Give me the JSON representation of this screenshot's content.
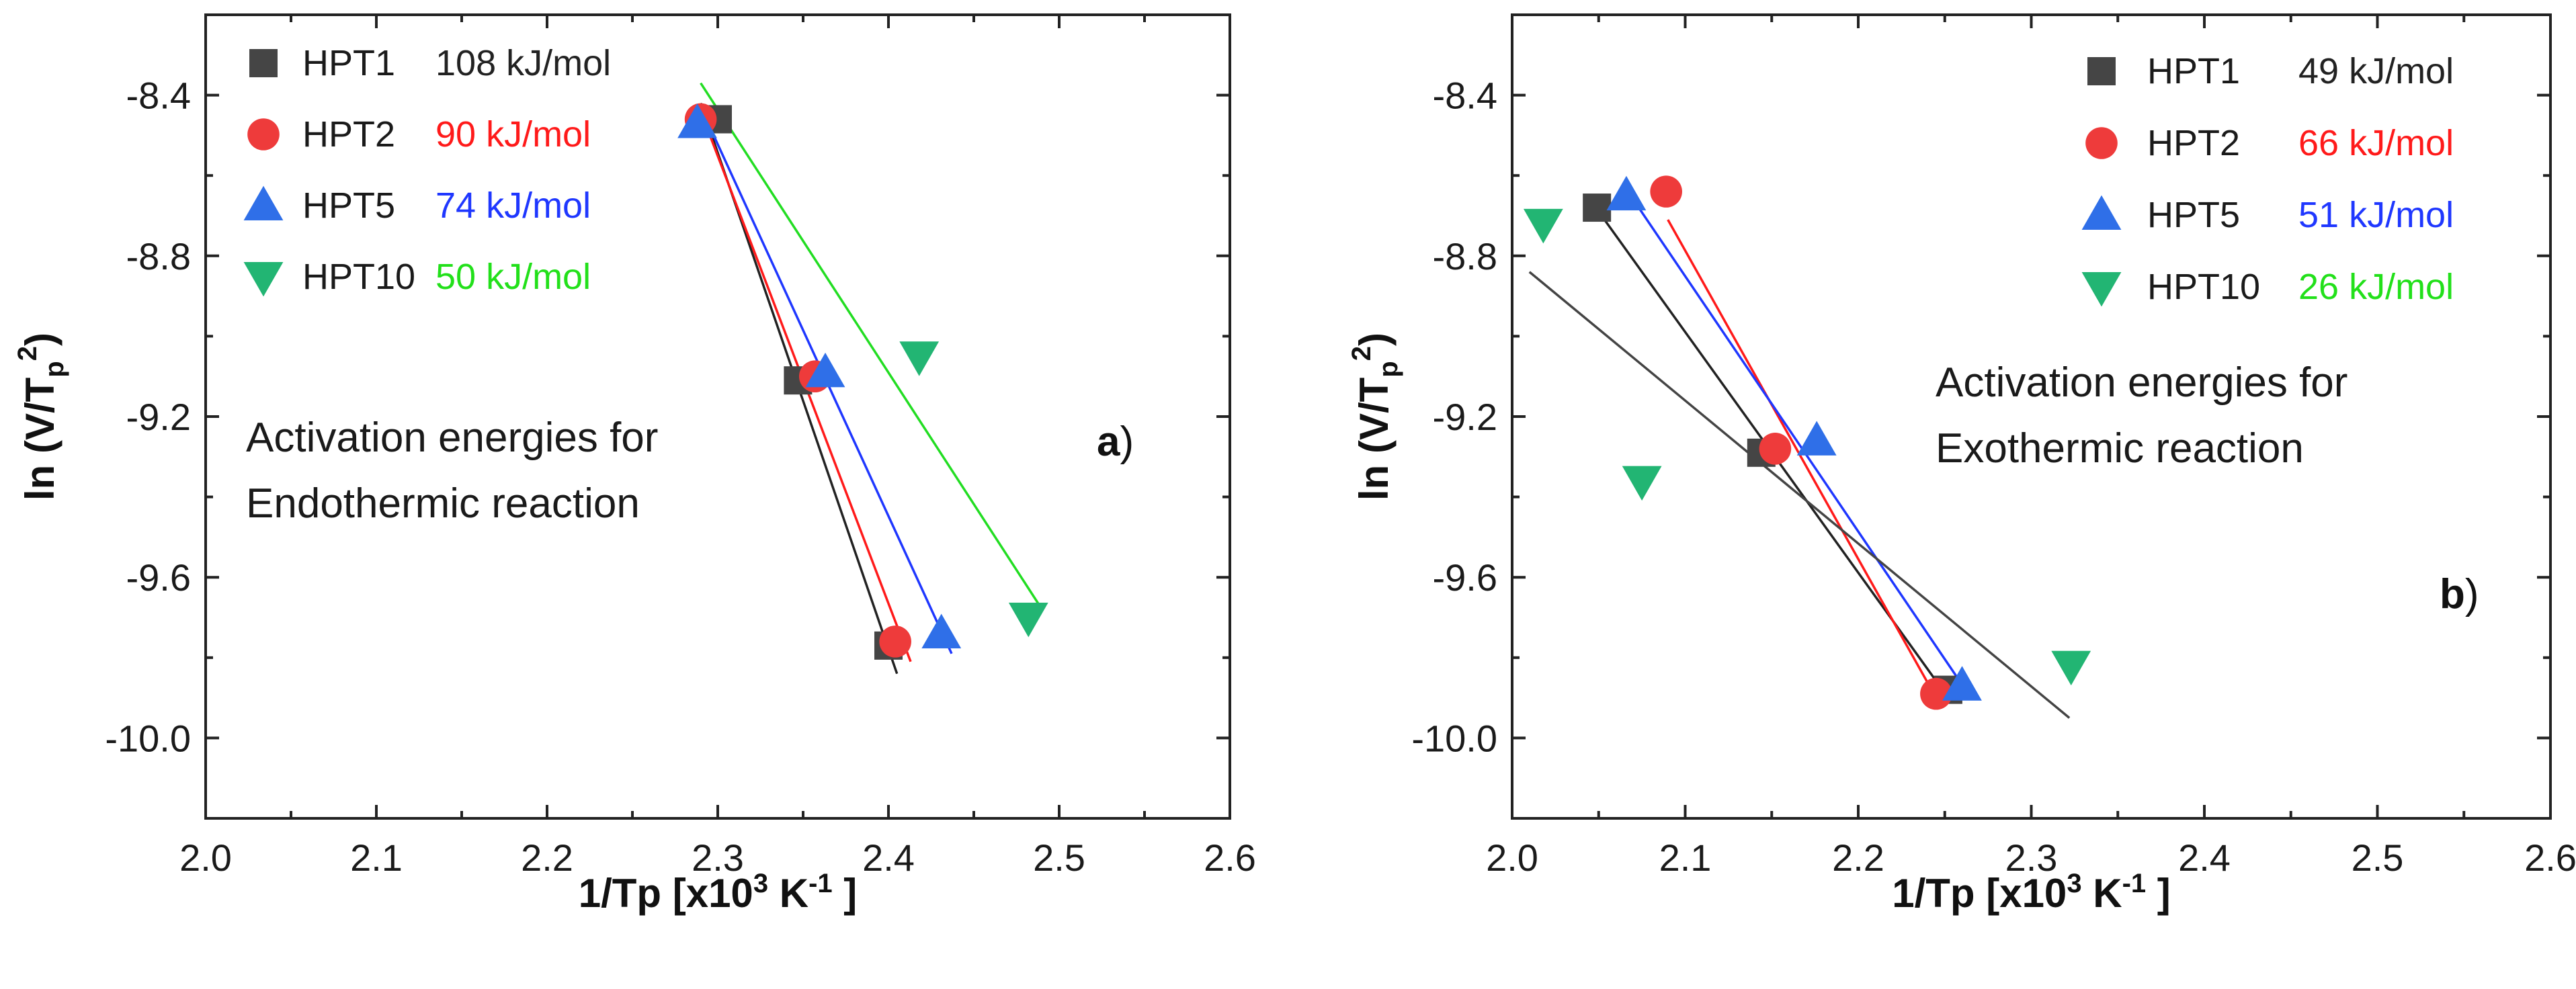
{
  "chart_data": [
    {
      "type": "scatter",
      "panel": "a",
      "panel_label": "a",
      "panel_label_suffix": ")",
      "annotation": [
        "Activation energies for",
        "Endothermic reaction"
      ],
      "xlabel": "1/Tp [x10³ K⁻¹ ]",
      "xlabel_parts": {
        "main": "1/Tp [x10",
        "sup1": "3",
        "mid": " K",
        "sup2": "-1",
        "end": " ]"
      },
      "ylabel_parts": {
        "main": "ln (V/T",
        "sub": "p",
        "sup": "2",
        "end": ")"
      },
      "xlim": [
        2.0,
        2.6
      ],
      "ylim": [
        -10.2,
        -8.2
      ],
      "xticks": [
        2.0,
        2.1,
        2.2,
        2.3,
        2.4,
        2.5,
        2.6
      ],
      "xtick_labels": [
        "2.0",
        "2.1",
        "2.2",
        "2.3",
        "2.4",
        "2.5",
        "2.6"
      ],
      "yticks": [
        -8.4,
        -8.8,
        -9.2,
        -9.6,
        -10.0
      ],
      "ytick_labels": [
        "-8.4",
        "-8.8",
        "-9.2",
        "-9.6",
        "-10.0"
      ],
      "legend_position": "top-left",
      "series": [
        {
          "name": "HPT1",
          "energy": "108 kJ/mol",
          "marker": "square",
          "color": "#454545",
          "energy_color": "#222222",
          "x": [
            2.3,
            2.347,
            2.4
          ],
          "y": [
            -8.46,
            -9.11,
            -9.77
          ],
          "fit": {
            "x": [
              2.29,
              2.405
            ],
            "y": [
              -8.42,
              -9.84
            ]
          }
        },
        {
          "name": "HPT2",
          "energy": "90 kJ/mol",
          "marker": "circle",
          "color": "#ee3b3b",
          "energy_color": "#ff1a1a",
          "x": [
            2.29,
            2.357,
            2.404
          ],
          "y": [
            -8.46,
            -9.1,
            -9.76
          ],
          "fit": {
            "x": [
              2.29,
              2.413
            ],
            "y": [
              -8.44,
              -9.81
            ]
          }
        },
        {
          "name": "HPT5",
          "energy": "74 kJ/mol",
          "marker": "triangle-up",
          "color": "#2f6fe8",
          "energy_color": "#1f37ff",
          "x": [
            2.288,
            2.363,
            2.431
          ],
          "y": [
            -8.47,
            -9.09,
            -9.74
          ],
          "fit": {
            "x": [
              2.29,
              2.437
            ],
            "y": [
              -8.43,
              -9.79
            ]
          }
        },
        {
          "name": "HPT10",
          "energy": "50 kJ/mol",
          "marker": "triangle-down",
          "color": "#22b573",
          "energy_color": "#22e01a",
          "x": [
            2.418,
            2.482
          ],
          "y": [
            -9.05,
            -9.7
          ],
          "fit": {
            "x": [
              2.29,
              2.49
            ],
            "y": [
              -8.37,
              -9.68
            ]
          }
        }
      ]
    },
    {
      "type": "scatter",
      "panel": "b",
      "panel_label": "b",
      "panel_label_suffix": ")",
      "annotation": [
        "Activation energies for",
        "Exothermic reaction"
      ],
      "xlabel": "1/Tp [x10³ K⁻¹ ]",
      "xlabel_parts": {
        "main": "1/Tp [x10",
        "sup1": "3",
        "mid": " K",
        "sup2": "-1",
        "end": " ]"
      },
      "ylabel_parts": {
        "main": "ln (V/T",
        "sub": "p",
        "sup": "2",
        "end": ")"
      },
      "xlim": [
        2.0,
        2.6
      ],
      "ylim": [
        -10.2,
        -8.2
      ],
      "xticks": [
        2.0,
        2.1,
        2.2,
        2.3,
        2.4,
        2.5,
        2.6
      ],
      "xtick_labels": [
        "2.0",
        "2.1",
        "2.2",
        "2.3",
        "2.4",
        "2.5",
        "2.6"
      ],
      "yticks": [
        -8.4,
        -8.8,
        -9.2,
        -9.6,
        -10.0
      ],
      "ytick_labels": [
        "-8.4",
        "-8.8",
        "-9.2",
        "-9.6",
        "-10.0"
      ],
      "legend_position": "top-right",
      "series": [
        {
          "name": "HPT1",
          "energy": "49 kJ/mol",
          "marker": "square",
          "color": "#454545",
          "energy_color": "#222222",
          "x": [
            2.049,
            2.144,
            2.252
          ],
          "y": [
            -8.68,
            -9.29,
            -9.88
          ],
          "fit": {
            "x": [
              2.05,
              2.252
            ],
            "y": [
              -8.69,
              -9.9
            ]
          }
        },
        {
          "name": "HPT2",
          "energy": "66 kJ/mol",
          "marker": "circle",
          "color": "#ee3b3b",
          "energy_color": "#ff1a1a",
          "x": [
            2.089,
            2.152,
            2.245
          ],
          "y": [
            -8.64,
            -9.28,
            -9.89
          ],
          "fit": {
            "x": [
              2.09,
              2.245
            ],
            "y": [
              -8.71,
              -9.9
            ]
          }
        },
        {
          "name": "HPT5",
          "energy": "51 kJ/mol",
          "marker": "triangle-up",
          "color": "#2f6fe8",
          "energy_color": "#1f37ff",
          "x": [
            2.066,
            2.176,
            2.26
          ],
          "y": [
            -8.65,
            -9.26,
            -9.87
          ],
          "fit": {
            "x": [
              2.07,
              2.262
            ],
            "y": [
              -8.66,
              -9.88
            ]
          }
        },
        {
          "name": "HPT10",
          "energy": "26 kJ/mol",
          "marker": "triangle-down",
          "color": "#22b573",
          "energy_color": "#22e01a",
          "x": [
            2.018,
            2.075,
            2.323
          ],
          "y": [
            -8.72,
            -9.36,
            -9.82
          ],
          "fit": {
            "x": [
              2.01,
              2.322
            ],
            "y": [
              -8.84,
              -9.95
            ]
          }
        }
      ]
    }
  ]
}
